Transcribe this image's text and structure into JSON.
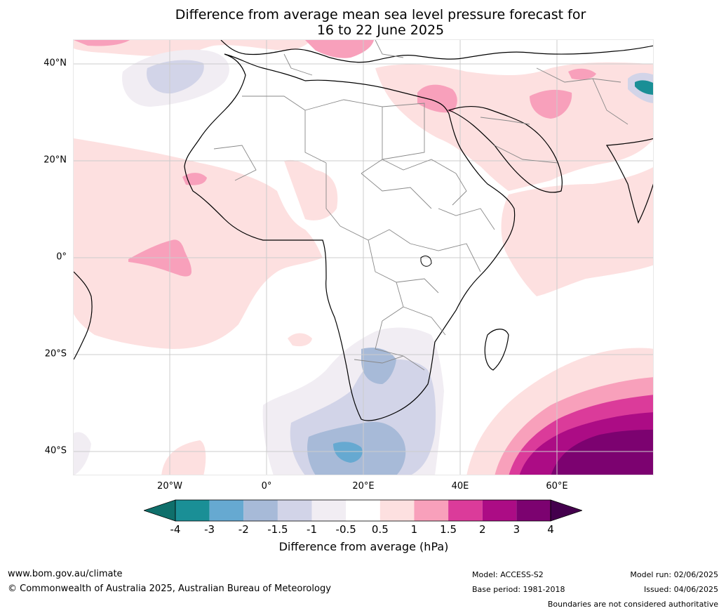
{
  "title": {
    "line1": "Difference from average mean sea level pressure forecast for",
    "line2": "16 to 22 June 2025"
  },
  "axes": {
    "lat_labels": [
      "40°N",
      "20°N",
      "0°",
      "20°S",
      "40°S"
    ],
    "lon_labels": [
      "20°W",
      "0°",
      "20°E",
      "40E",
      "60°E"
    ]
  },
  "colorbar": {
    "tick_labels": [
      "-4",
      "-3",
      "-2",
      "-1.5",
      "-1",
      "-0.5",
      "0.5",
      "1",
      "1.5",
      "2",
      "3",
      "4"
    ],
    "colors": [
      "#0f6f6b",
      "#1a8f96",
      "#66a9d1",
      "#a7bad8",
      "#d2d4e8",
      "#f1edf3",
      "#ffffff",
      "#fde0e0",
      "#f8a0bb",
      "#db3b9a",
      "#ac0c85",
      "#7c0270",
      "#44004d"
    ],
    "label": "Difference from average (hPa)"
  },
  "footer": {
    "website": "www.bom.gov.au/climate",
    "copyright": "© Commonwealth of Australia 2025, Australian Bureau of Meteorology",
    "model": "Model: ACCESS-S2",
    "base_period": "Base period: 1981-2018",
    "model_run": "Model run: 02/06/2025",
    "issued": "Issued: 04/06/2025",
    "disclaimer": "Boundaries are not considered authoritative"
  }
}
